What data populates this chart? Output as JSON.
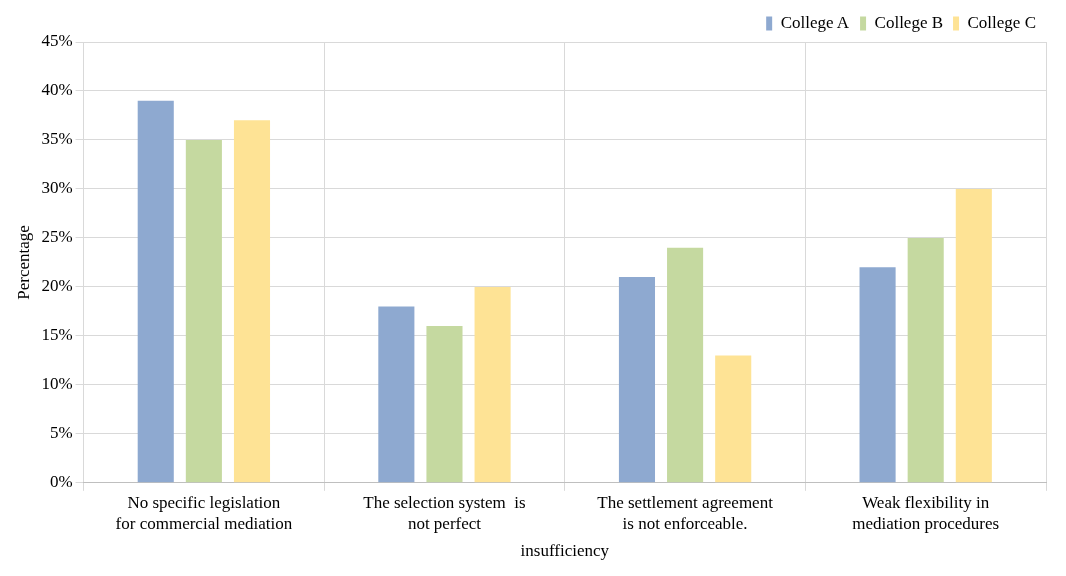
{
  "chart_data": {
    "type": "bar",
    "xlabel": "insufficiency",
    "ylabel": "Percentage",
    "categories": [
      "No specific legislation for commercial mediation",
      "The selection system  is not perfect",
      "The settlement agreement is not enforceable.",
      "Weak flexibility in mediation procedures"
    ],
    "series": [
      {
        "name": "College A",
        "color": "#8ea9d0",
        "values": [
          39,
          18,
          21,
          22
        ]
      },
      {
        "name": "College B",
        "color": "#c5d9a0",
        "values": [
          35,
          16,
          24,
          25
        ]
      },
      {
        "name": "College C",
        "color": "#fee395",
        "values": [
          37,
          20,
          13,
          30
        ]
      }
    ],
    "ylim": [
      0,
      45
    ],
    "yticks": [
      {
        "value": 0,
        "label": "0%"
      },
      {
        "value": 5,
        "label": "5%"
      },
      {
        "value": 10,
        "label": "10%"
      },
      {
        "value": 15,
        "label": "15%"
      },
      {
        "value": 20,
        "label": "20%"
      },
      {
        "value": 25,
        "label": "25%"
      },
      {
        "value": 30,
        "label": "30%"
      },
      {
        "value": 35,
        "label": "35%"
      },
      {
        "value": 40,
        "label": "40%"
      },
      {
        "value": 45,
        "label": "45%"
      }
    ],
    "grid": true,
    "legend": "top right"
  }
}
